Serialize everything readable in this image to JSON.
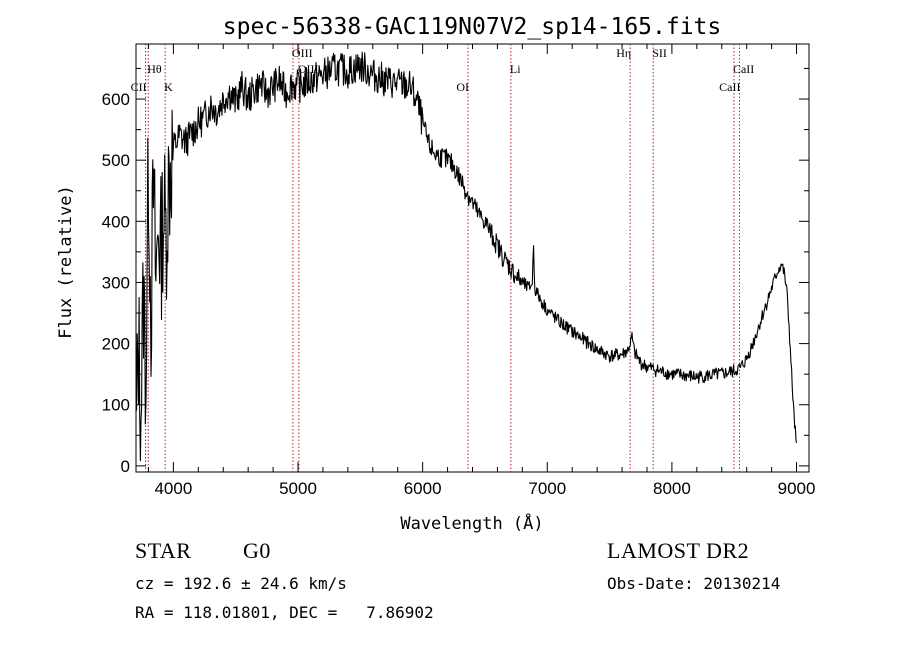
{
  "chart_data": {
    "type": "line",
    "title": "spec-56338-GAC119N07V2_sp14-165.fits",
    "xlabel": "Wavelength (Å)",
    "ylabel": "Flux (relative)",
    "xlim": [
      3700,
      9100
    ],
    "ylim": [
      -10,
      690
    ],
    "x_ticks": [
      4000,
      5000,
      6000,
      7000,
      8000,
      9000
    ],
    "y_ticks": [
      0,
      100,
      200,
      300,
      400,
      500,
      600
    ],
    "grid": false,
    "legend": "none",
    "series": [
      {
        "color": "#000000",
        "x": [
          3700,
          3720,
          3740,
          3760,
          3780,
          3800,
          3820,
          3840,
          3860,
          3880,
          3900,
          3920,
          3940,
          3960,
          3980,
          4000,
          4050,
          4100,
          4150,
          4200,
          4250,
          4300,
          4350,
          4400,
          4450,
          4500,
          4550,
          4600,
          4650,
          4700,
          4750,
          4800,
          4850,
          4900,
          4950,
          5000,
          5100,
          5200,
          5300,
          5400,
          5500,
          5600,
          5700,
          5800,
          5900,
          5950,
          6000,
          6050,
          6100,
          6150,
          6200,
          6250,
          6300,
          6350,
          6400,
          6450,
          6500,
          6550,
          6600,
          6650,
          6700,
          6750,
          6800,
          6850,
          6880,
          6890,
          6900,
          6950,
          7000,
          7100,
          7200,
          7300,
          7400,
          7500,
          7600,
          7650,
          7680,
          7700,
          7750,
          7800,
          7900,
          8000,
          8100,
          8200,
          8300,
          8400,
          8500,
          8550,
          8600,
          8650,
          8700,
          8750,
          8800,
          8850,
          8880,
          8900,
          8920,
          8940,
          8960,
          8980,
          9000
        ],
        "y": [
          30,
          200,
          100,
          280,
          150,
          500,
          250,
          450,
          300,
          400,
          350,
          420,
          380,
          460,
          500,
          520,
          540,
          530,
          545,
          560,
          570,
          590,
          580,
          600,
          610,
          595,
          620,
          600,
          615,
          625,
          610,
          620,
          630,
          610,
          625,
          620,
          630,
          640,
          650,
          645,
          655,
          640,
          630,
          625,
          620,
          600,
          560,
          525,
          510,
          505,
          500,
          490,
          470,
          450,
          430,
          410,
          400,
          380,
          360,
          340,
          325,
          310,
          300,
          290,
          300,
          360,
          290,
          270,
          255,
          235,
          220,
          205,
          190,
          180,
          182,
          190,
          210,
          185,
          168,
          162,
          155,
          150,
          148,
          145,
          148,
          150,
          155,
          160,
          175,
          200,
          230,
          260,
          290,
          320,
          330,
          315,
          290,
          230,
          150,
          80,
          30
        ]
      }
    ],
    "reference_lines": [
      {
        "label": "CII",
        "x": 3777
      },
      {
        "label": "Hθ",
        "x": 3798
      },
      {
        "label": "K",
        "x": 3934
      },
      {
        "label": "OIII",
        "x": 4959
      },
      {
        "label": "OIII",
        "x": 5007
      },
      {
        "label": "OI",
        "x": 6364
      },
      {
        "label": "Li",
        "x": 6708
      },
      {
        "label": "Hη",
        "x": 7665
      },
      {
        "label": "SII",
        "x": 7850
      },
      {
        "label": "CaII",
        "x": 8498
      },
      {
        "label": "CaII",
        "x": 8542
      }
    ]
  },
  "info": {
    "object_class": "STAR",
    "subclass": "G0",
    "survey": "LAMOST DR2",
    "cz": "cz = 192.6 ± 24.6 km/s",
    "obs_date": "Obs-Date: 20130214",
    "radec": "RA = 118.01801, DEC =   7.86902"
  }
}
